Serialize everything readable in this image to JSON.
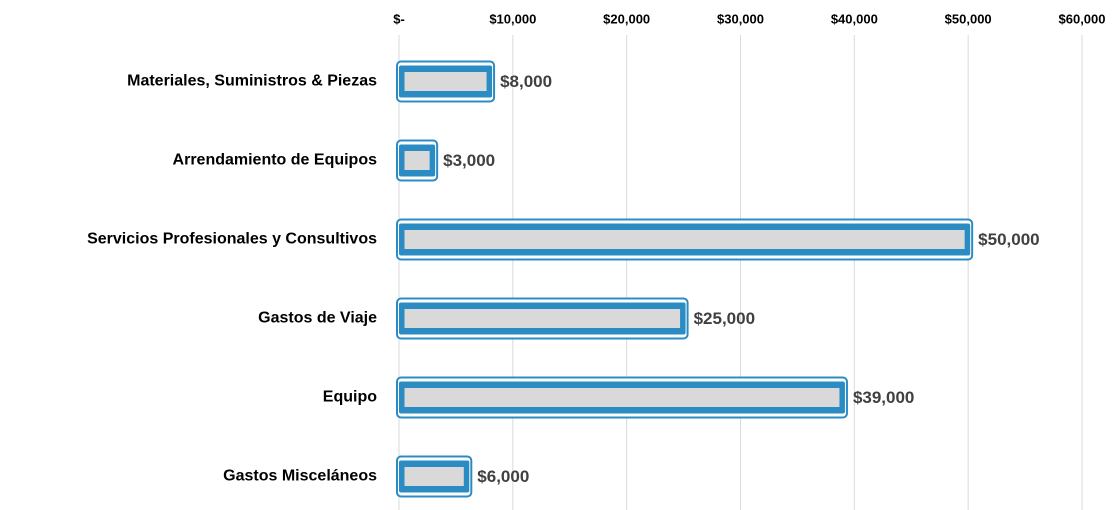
{
  "chart_data": {
    "type": "barh",
    "categories": [
      "Materiales, Suministros & Piezas",
      "Arrendamiento de Equipos",
      "Servicios Profesionales y Consultivos",
      "Gastos de Viaje",
      "Equipo",
      "Gastos Misceláneos"
    ],
    "values": [
      8000,
      3000,
      50000,
      25000,
      39000,
      6000
    ],
    "value_labels": [
      "$8,000",
      "$3,000",
      "$50,000",
      "$25,000",
      "$39,000",
      "$6,000"
    ],
    "color": "#2b8cc4",
    "fill": "#d9d9d9",
    "xlim": [
      0,
      60000
    ],
    "xticks": [
      {
        "value": 0,
        "label": "$-"
      },
      {
        "value": 10000,
        "label": "$10,000"
      },
      {
        "value": 20000,
        "label": "$20,000"
      },
      {
        "value": 30000,
        "label": "$30,000"
      },
      {
        "value": 40000,
        "label": "$40,000"
      },
      {
        "value": 50000,
        "label": "$50,000"
      },
      {
        "value": 60000,
        "label": "$60,000"
      }
    ],
    "grid": true
  }
}
